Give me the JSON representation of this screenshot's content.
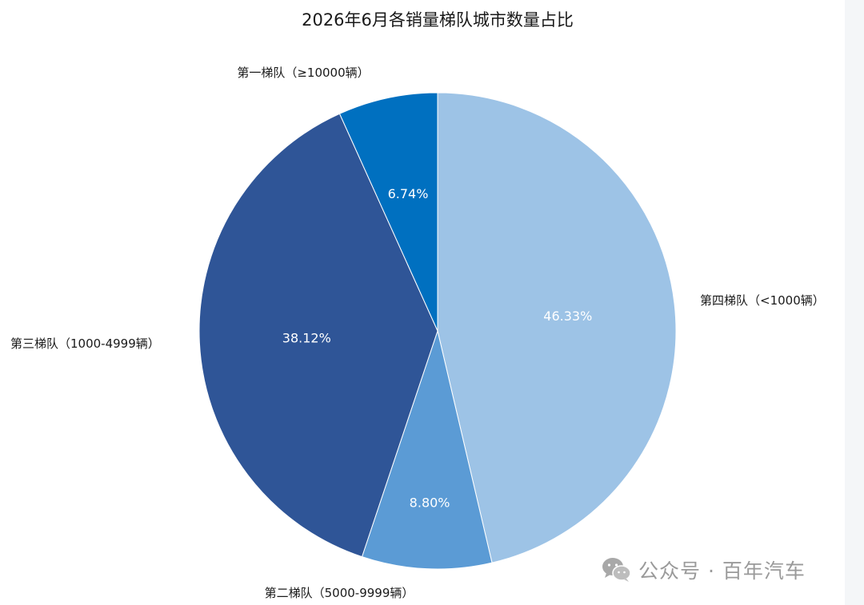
{
  "chart_data": {
    "type": "pie",
    "title": "2026年6月各销量梯队城市数量占比",
    "slices": [
      {
        "label": "第四梯队（<1000辆）",
        "value": 46.33,
        "display": "46.33%",
        "color": "#9dc3e6"
      },
      {
        "label": "第二梯队（5000-9999辆）",
        "value": 8.8,
        "display": "8.80%",
        "color": "#5b9bd5"
      },
      {
        "label": "第三梯队（1000-4999辆）",
        "value": 38.12,
        "display": "38.12%",
        "color": "#2f5597"
      },
      {
        "label": "第一梯队（≥10000辆）",
        "value": 6.74,
        "display": "6.74%",
        "color": "#0070c0"
      }
    ],
    "start": "12 o'clock",
    "direction": "clockwise"
  },
  "watermark": {
    "text": "公众号 · 百年汽车",
    "icon": "wechat-icon"
  }
}
